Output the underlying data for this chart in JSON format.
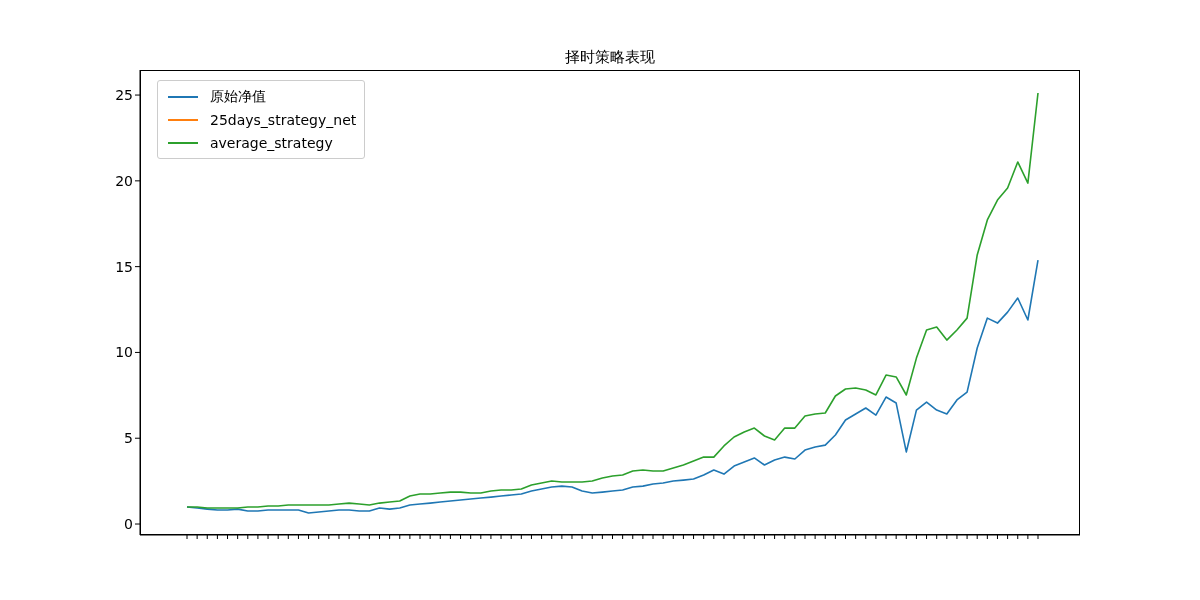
{
  "chart_data": {
    "type": "line",
    "title": "择时策略表现",
    "categories": [
      null,
      null,
      null,
      null,
      null,
      null,
      null,
      null,
      null,
      null,
      null,
      null,
      null,
      null,
      null,
      null,
      null,
      null,
      null,
      null,
      null,
      null,
      null,
      null,
      null,
      null,
      null,
      null,
      null,
      null,
      null,
      null,
      null,
      null,
      null,
      null,
      null,
      null,
      null,
      null,
      null,
      null,
      null,
      null,
      null,
      null,
      null,
      null,
      null,
      null,
      null,
      null,
      null,
      null,
      null,
      null,
      null,
      null,
      null,
      null,
      null,
      null,
      null,
      null,
      null,
      null,
      null,
      null,
      null,
      null,
      null,
      null,
      null,
      null,
      null,
      null,
      null,
      null,
      null,
      null,
      null,
      null,
      null,
      null,
      null
    ],
    "series": [
      {
        "name": "原始净值",
        "color": "#1f77b4",
        "values": [
          0.99,
          0.93,
          0.87,
          0.82,
          0.82,
          0.87,
          0.76,
          0.76,
          0.82,
          0.82,
          0.82,
          0.82,
          0.64,
          0.7,
          0.76,
          0.82,
          0.82,
          0.76,
          0.76,
          0.93,
          0.87,
          0.93,
          1.11,
          1.17,
          1.22,
          1.28,
          1.34,
          1.4,
          1.46,
          1.52,
          1.57,
          1.63,
          1.69,
          1.75,
          1.92,
          2.04,
          2.16,
          2.21,
          2.16,
          1.92,
          1.81,
          1.86,
          1.92,
          1.98,
          2.16,
          2.21,
          2.33,
          2.39,
          2.51,
          2.56,
          2.62,
          2.86,
          3.15,
          2.91,
          3.38,
          3.61,
          3.85,
          3.44,
          3.73,
          3.9,
          3.79,
          4.31,
          4.49,
          4.6,
          5.19,
          6.06,
          6.41,
          6.76,
          6.35,
          7.4,
          7.05,
          4.2,
          6.64,
          7.11,
          6.64,
          6.41,
          7.23,
          7.69,
          10.26,
          12.0,
          11.71,
          12.35,
          13.17,
          11.89,
          15.38
        ]
      },
      {
        "name": "25days_strategy_net",
        "color": "#ff7f0e",
        "values": [
          null,
          null,
          null,
          null,
          null,
          null,
          null,
          null,
          null,
          null,
          null,
          null,
          null,
          null,
          null,
          null,
          null,
          null,
          null,
          null,
          null,
          null,
          null,
          null,
          null,
          null,
          null,
          null,
          null,
          null,
          null,
          null,
          null,
          null,
          null,
          null,
          null,
          null,
          null,
          null,
          null,
          null,
          null,
          null,
          null,
          null,
          null,
          null,
          null,
          null,
          null,
          null,
          null,
          null,
          null,
          null,
          null,
          null,
          null,
          null,
          null,
          null,
          null,
          null,
          null,
          null,
          null,
          null,
          null,
          null,
          null,
          null,
          null,
          null,
          null,
          null,
          null,
          null,
          null,
          null,
          null,
          null,
          null,
          null,
          null
        ]
      },
      {
        "name": "average_strategy",
        "color": "#2ca02c",
        "values": [
          0.99,
          0.99,
          0.93,
          0.93,
          0.93,
          0.93,
          0.99,
          0.99,
          1.05,
          1.05,
          1.11,
          1.11,
          1.11,
          1.11,
          1.11,
          1.17,
          1.22,
          1.17,
          1.11,
          1.22,
          1.28,
          1.34,
          1.63,
          1.75,
          1.75,
          1.81,
          1.86,
          1.86,
          1.81,
          1.81,
          1.92,
          1.98,
          1.98,
          2.04,
          2.27,
          2.39,
          2.51,
          2.45,
          2.45,
          2.45,
          2.51,
          2.68,
          2.8,
          2.86,
          3.09,
          3.15,
          3.09,
          3.09,
          3.26,
          3.44,
          3.67,
          3.9,
          3.9,
          4.55,
          5.07,
          5.36,
          5.59,
          5.13,
          4.9,
          5.59,
          5.59,
          6.29,
          6.41,
          6.47,
          7.46,
          7.87,
          7.93,
          7.81,
          7.52,
          8.68,
          8.57,
          7.52,
          9.67,
          11.31,
          11.48,
          10.72,
          11.31,
          12.0,
          15.68,
          17.72,
          18.88,
          19.58,
          21.1,
          19.87,
          25.12
        ]
      }
    ],
    "ylim": [
      -0.64,
      26.46
    ],
    "yticks": [
      0,
      5,
      10,
      15,
      20,
      25
    ],
    "legend": "top left"
  }
}
